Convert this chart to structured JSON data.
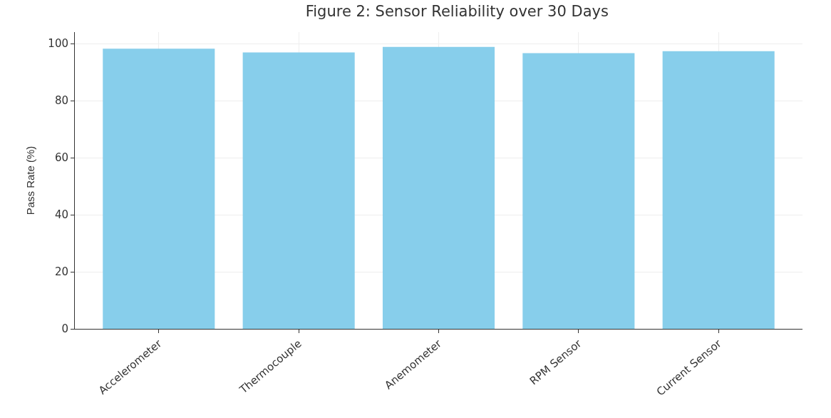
{
  "chart_data": {
    "type": "bar",
    "title": "Figure 2: Sensor Reliability over 30 Days",
    "ylabel": "Pass Rate (%)",
    "categories": [
      "Accelerometer",
      "Thermocouple",
      "Anemometer",
      "RPM Sensor",
      "Current Sensor"
    ],
    "values": [
      98.2,
      96.9,
      98.8,
      96.6,
      97.3
    ],
    "color": "#87ceeb",
    "ylim": [
      0,
      104
    ],
    "yticks": [
      0,
      20,
      40,
      60,
      80,
      100
    ],
    "grid": true
  }
}
